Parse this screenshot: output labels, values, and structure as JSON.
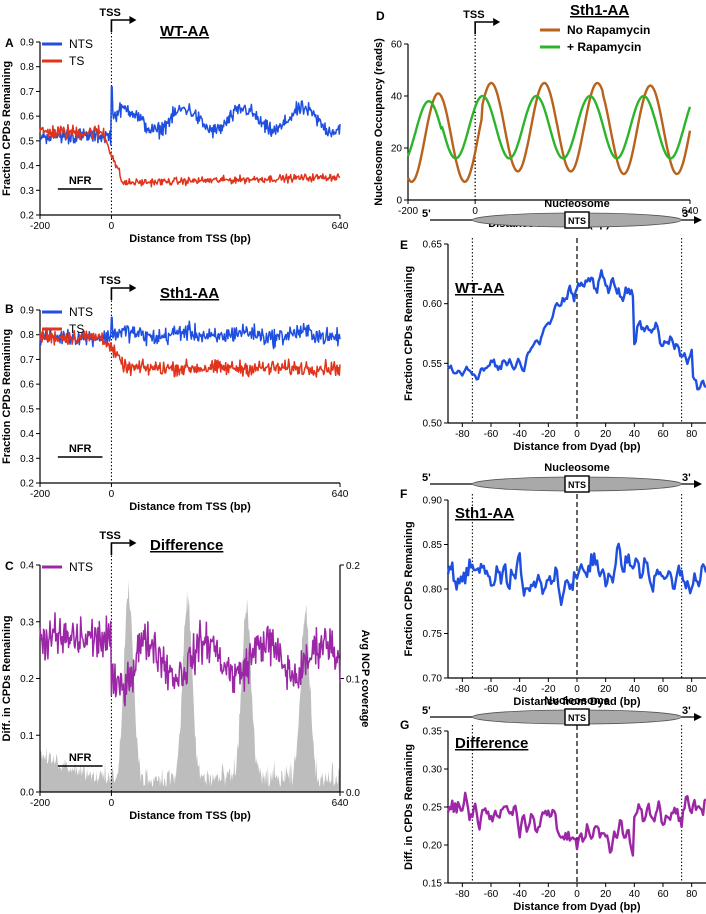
{
  "figure": {
    "nucleosome_label": "Nucleosome",
    "nts_box": "NTS",
    "five_prime": "5'",
    "three_prime": "3'"
  },
  "colors": {
    "nts": "#1f4fe0",
    "ts": "#e0341c",
    "diff": "#9b27a6",
    "no_rapa": "#b8621b",
    "rapa": "#2cb52c",
    "coverage": "#bdbdbd"
  },
  "chart_data": [
    {
      "id": "A",
      "type": "line",
      "panel_label": "A",
      "title": "WT-AA",
      "xlabel": "Distance from TSS (bp)",
      "ylabel": "Fraction CPDs Remaining",
      "xlim": [
        -200,
        640
      ],
      "ylim": [
        0.2,
        0.9
      ],
      "xticks": [
        -200,
        0,
        640
      ],
      "xtick_labels": [
        "-200",
        "0",
        "640"
      ],
      "yticks": [
        0.2,
        0.3,
        0.4,
        0.5,
        0.6,
        0.7,
        0.8,
        0.9
      ],
      "ytick_labels": [
        "0.2",
        "0.3",
        "0.4",
        "0.5",
        "0.6",
        "0.7",
        "0.8",
        "0.9"
      ],
      "tss_label": "TSS",
      "nfr_label": "NFR",
      "nfr_range": [
        -150,
        -25
      ],
      "legend": [
        "NTS",
        "TS"
      ],
      "series": [
        {
          "name": "NTS",
          "color": "#1f4fe0",
          "profile": "A_NTS"
        },
        {
          "name": "TS",
          "color": "#e0341c",
          "profile": "A_TS"
        }
      ]
    },
    {
      "id": "B",
      "type": "line",
      "panel_label": "B",
      "title": "Sth1-AA",
      "xlabel": "Distance from TSS (bp)",
      "ylabel": "Fraction CPDs Remaining",
      "xlim": [
        -200,
        640
      ],
      "ylim": [
        0.2,
        0.9
      ],
      "xticks": [
        -200,
        0,
        640
      ],
      "xtick_labels": [
        "-200",
        "0",
        "640"
      ],
      "yticks": [
        0.2,
        0.3,
        0.4,
        0.5,
        0.6,
        0.7,
        0.8,
        0.9
      ],
      "ytick_labels": [
        "0.2",
        "0.3",
        "0.4",
        "0.5",
        "0.6",
        "0.7",
        "0.8",
        "0.9"
      ],
      "tss_label": "TSS",
      "nfr_label": "NFR",
      "nfr_range": [
        -150,
        -25
      ],
      "legend": [
        "NTS",
        "TS"
      ],
      "series": [
        {
          "name": "NTS",
          "color": "#1f4fe0",
          "profile": "B_NTS"
        },
        {
          "name": "TS",
          "color": "#e0341c",
          "profile": "B_TS"
        }
      ]
    },
    {
      "id": "C",
      "type": "line",
      "panel_label": "C",
      "title": "Difference",
      "xlabel": "Distance from TSS (bp)",
      "ylabel": "Diff. in CPDs Remaining",
      "y2label": "Avg NCP coverage",
      "xlim": [
        -200,
        640
      ],
      "ylim": [
        0.0,
        0.4
      ],
      "y2lim": [
        0.0,
        0.2
      ],
      "xticks": [
        -200,
        0,
        640
      ],
      "xtick_labels": [
        "-200",
        "0",
        "640"
      ],
      "yticks": [
        0.0,
        0.1,
        0.2,
        0.3,
        0.4
      ],
      "ytick_labels": [
        "0.0",
        "0.1",
        "0.2",
        "0.3",
        "0.4"
      ],
      "y2ticks": [
        0.0,
        0.1,
        0.2
      ],
      "y2tick_labels": [
        "0.0",
        "0.1",
        "0.2"
      ],
      "tss_label": "TSS",
      "nfr_label": "NFR",
      "nfr_range": [
        -150,
        -25
      ],
      "legend": [
        "NTS"
      ],
      "series": [
        {
          "name": "NTS",
          "color": "#9b27a6",
          "profile": "C_NTS"
        },
        {
          "name": "Avg NCP coverage",
          "color": "#bdbdbd",
          "profile": "C_COV",
          "axis": "y2",
          "type": "area"
        }
      ]
    },
    {
      "id": "D",
      "type": "line",
      "panel_label": "D",
      "title": "Sth1-AA",
      "xlabel": "Distance from TSS (bp)",
      "ylabel": "Nucleosome Occupancy (reads)",
      "xlim": [
        -200,
        640
      ],
      "ylim": [
        0,
        60
      ],
      "xticks": [
        -200,
        0,
        640
      ],
      "xtick_labels": [
        "-200",
        "0",
        "640"
      ],
      "yticks": [
        0,
        20,
        40,
        60
      ],
      "ytick_labels": [
        "0",
        "20",
        "40",
        "60"
      ],
      "tss_label": "TSS",
      "legend": [
        "No Rapamycin",
        "+ Rapamycin"
      ],
      "series": [
        {
          "name": "No Rapamycin",
          "color": "#b8621b",
          "profile": "D_NO"
        },
        {
          "name": "+ Rapamycin",
          "color": "#2cb52c",
          "profile": "D_RAPA"
        }
      ]
    },
    {
      "id": "E",
      "type": "line",
      "panel_label": "E",
      "title": "WT-AA",
      "xlabel": "Distance from Dyad (bp)",
      "ylabel": "Fraction CPDs Remaining",
      "xlim": [
        -90,
        90
      ],
      "ylim": [
        0.5,
        0.65
      ],
      "xticks": [
        -80,
        -60,
        -40,
        -20,
        0,
        20,
        40,
        60,
        80
      ],
      "xtick_labels": [
        "-80",
        "-60",
        "-40",
        "-20",
        "0",
        "20",
        "40",
        "60",
        "80"
      ],
      "yticks": [
        0.5,
        0.55,
        0.6,
        0.65
      ],
      "ytick_labels": [
        "0.50",
        "0.55",
        "0.60",
        "0.65"
      ],
      "series": [
        {
          "name": "NTS",
          "color": "#1f4fe0",
          "profile": "E"
        }
      ]
    },
    {
      "id": "F",
      "type": "line",
      "panel_label": "F",
      "title": "Sth1-AA",
      "xlabel": "Distance from Dyad (bp)",
      "ylabel": "Fraction CPDs Remaining",
      "xlim": [
        -90,
        90
      ],
      "ylim": [
        0.7,
        0.9
      ],
      "xticks": [
        -80,
        -60,
        -40,
        -20,
        0,
        20,
        40,
        60,
        80
      ],
      "xtick_labels": [
        "-80",
        "-60",
        "-40",
        "-20",
        "0",
        "20",
        "40",
        "60",
        "80"
      ],
      "yticks": [
        0.7,
        0.75,
        0.8,
        0.85,
        0.9
      ],
      "ytick_labels": [
        "0.70",
        "0.75",
        "0.80",
        "0.85",
        "0.90"
      ],
      "series": [
        {
          "name": "NTS",
          "color": "#1f4fe0",
          "profile": "F"
        }
      ]
    },
    {
      "id": "G",
      "type": "line",
      "panel_label": "G",
      "title": "Difference",
      "xlabel": "Distance from Dyad (bp)",
      "ylabel": "Diff. in CPDs Remaining",
      "xlim": [
        -90,
        90
      ],
      "ylim": [
        0.15,
        0.35
      ],
      "xticks": [
        -80,
        -60,
        -40,
        -20,
        0,
        20,
        40,
        60,
        80
      ],
      "xtick_labels": [
        "-80",
        "-60",
        "-40",
        "-20",
        "0",
        "20",
        "40",
        "60",
        "80"
      ],
      "yticks": [
        0.15,
        0.2,
        0.25,
        0.3,
        0.35
      ],
      "ytick_labels": [
        "0.15",
        "0.20",
        "0.25",
        "0.30",
        "0.35"
      ],
      "series": [
        {
          "name": "NTS",
          "color": "#9b27a6",
          "profile": "G"
        }
      ]
    }
  ]
}
